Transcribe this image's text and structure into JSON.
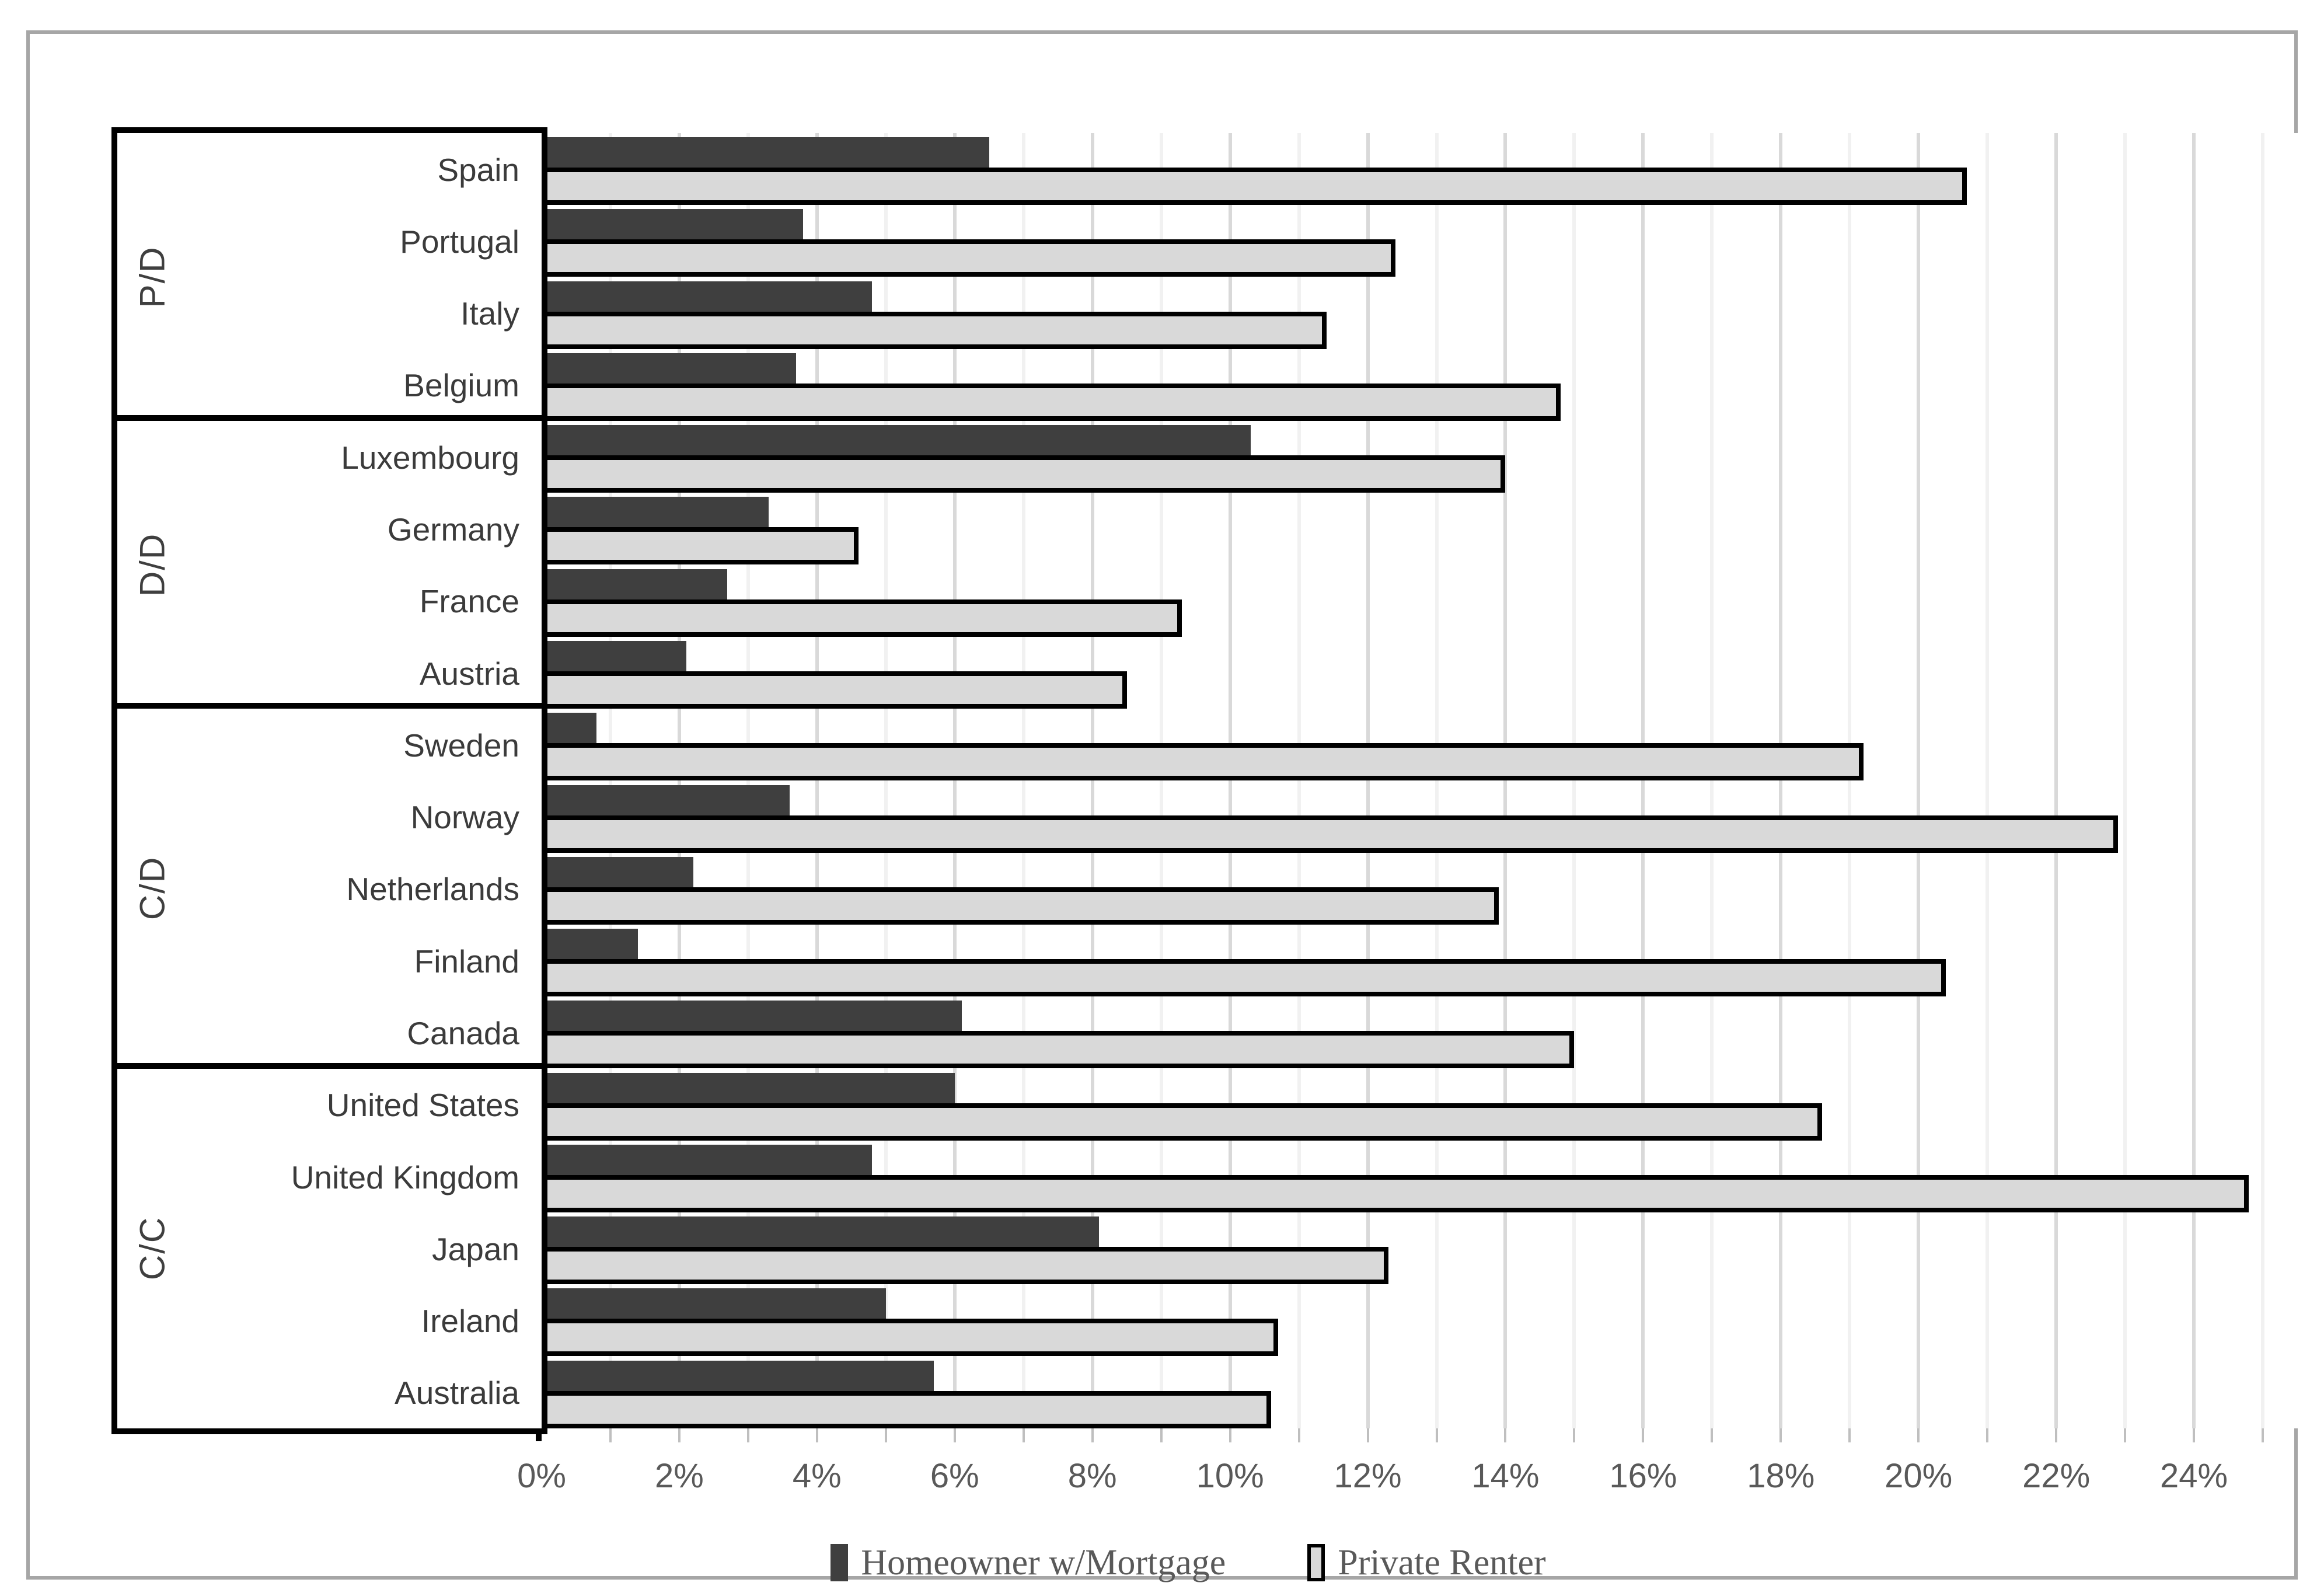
{
  "chart_data": {
    "type": "bar",
    "orientation": "horizontal",
    "title": "",
    "xlabel": "",
    "ylabel": "",
    "xlim": [
      0,
      26
    ],
    "grid": "vertical, every 1%, labels every 2%",
    "legend_position": "bottom-center",
    "x_tick_labels": [
      "0%",
      "2%",
      "4%",
      "6%",
      "8%",
      "10%",
      "12%",
      "14%",
      "16%",
      "18%",
      "20%",
      "22%",
      "24%"
    ],
    "series": [
      {
        "name": "Homeowner w/Mortgage",
        "color": "#3f3f3f"
      },
      {
        "name": "Private Renter",
        "color": "#d9d9d9"
      }
    ],
    "groups": [
      {
        "label": "P/D",
        "countries": [
          {
            "name": "Spain",
            "homeowner": 6.5,
            "renter": 20.7
          },
          {
            "name": "Portugal",
            "homeowner": 3.8,
            "renter": 12.4
          },
          {
            "name": "Italy",
            "homeowner": 4.8,
            "renter": 11.4
          },
          {
            "name": "Belgium",
            "homeowner": 3.7,
            "renter": 14.8
          }
        ]
      },
      {
        "label": "D/D",
        "countries": [
          {
            "name": "Luxembourg",
            "homeowner": 10.3,
            "renter": 14.0
          },
          {
            "name": "Germany",
            "homeowner": 3.3,
            "renter": 4.6
          },
          {
            "name": "France",
            "homeowner": 2.7,
            "renter": 9.3
          },
          {
            "name": "Austria",
            "homeowner": 2.1,
            "renter": 8.5
          }
        ]
      },
      {
        "label": "C/D",
        "countries": [
          {
            "name": "Sweden",
            "homeowner": 0.8,
            "renter": 19.2
          },
          {
            "name": "Norway",
            "homeowner": 3.6,
            "renter": 22.9
          },
          {
            "name": "Netherlands",
            "homeowner": 2.2,
            "renter": 13.9
          },
          {
            "name": "Finland",
            "homeowner": 1.4,
            "renter": 20.4
          },
          {
            "name": "Canada",
            "homeowner": 6.1,
            "renter": 15.0
          }
        ]
      },
      {
        "label": "C/C",
        "countries": [
          {
            "name": "United States",
            "homeowner": 6.0,
            "renter": 18.6
          },
          {
            "name": "United Kingdom",
            "homeowner": 4.8,
            "renter": 24.8
          },
          {
            "name": "Japan",
            "homeowner": 8.1,
            "renter": 12.3
          },
          {
            "name": "Ireland",
            "homeowner": 5.0,
            "renter": 10.7
          },
          {
            "name": "Australia",
            "homeowner": 5.7,
            "renter": 10.6
          }
        ]
      }
    ],
    "colors": {
      "bar_dark": "#3f3f3f",
      "bar_light": "#d9d9d9",
      "bar_light_border": "#000000",
      "gridline_major": "#d9d9d9",
      "gridline_minor": "#f1f1f1",
      "frame_border": "#a6a6a6",
      "box_border": "#000000",
      "tick_mark": "#bfbfbf",
      "label_text": "#3b3b3b",
      "tick_text": "#595959"
    }
  }
}
